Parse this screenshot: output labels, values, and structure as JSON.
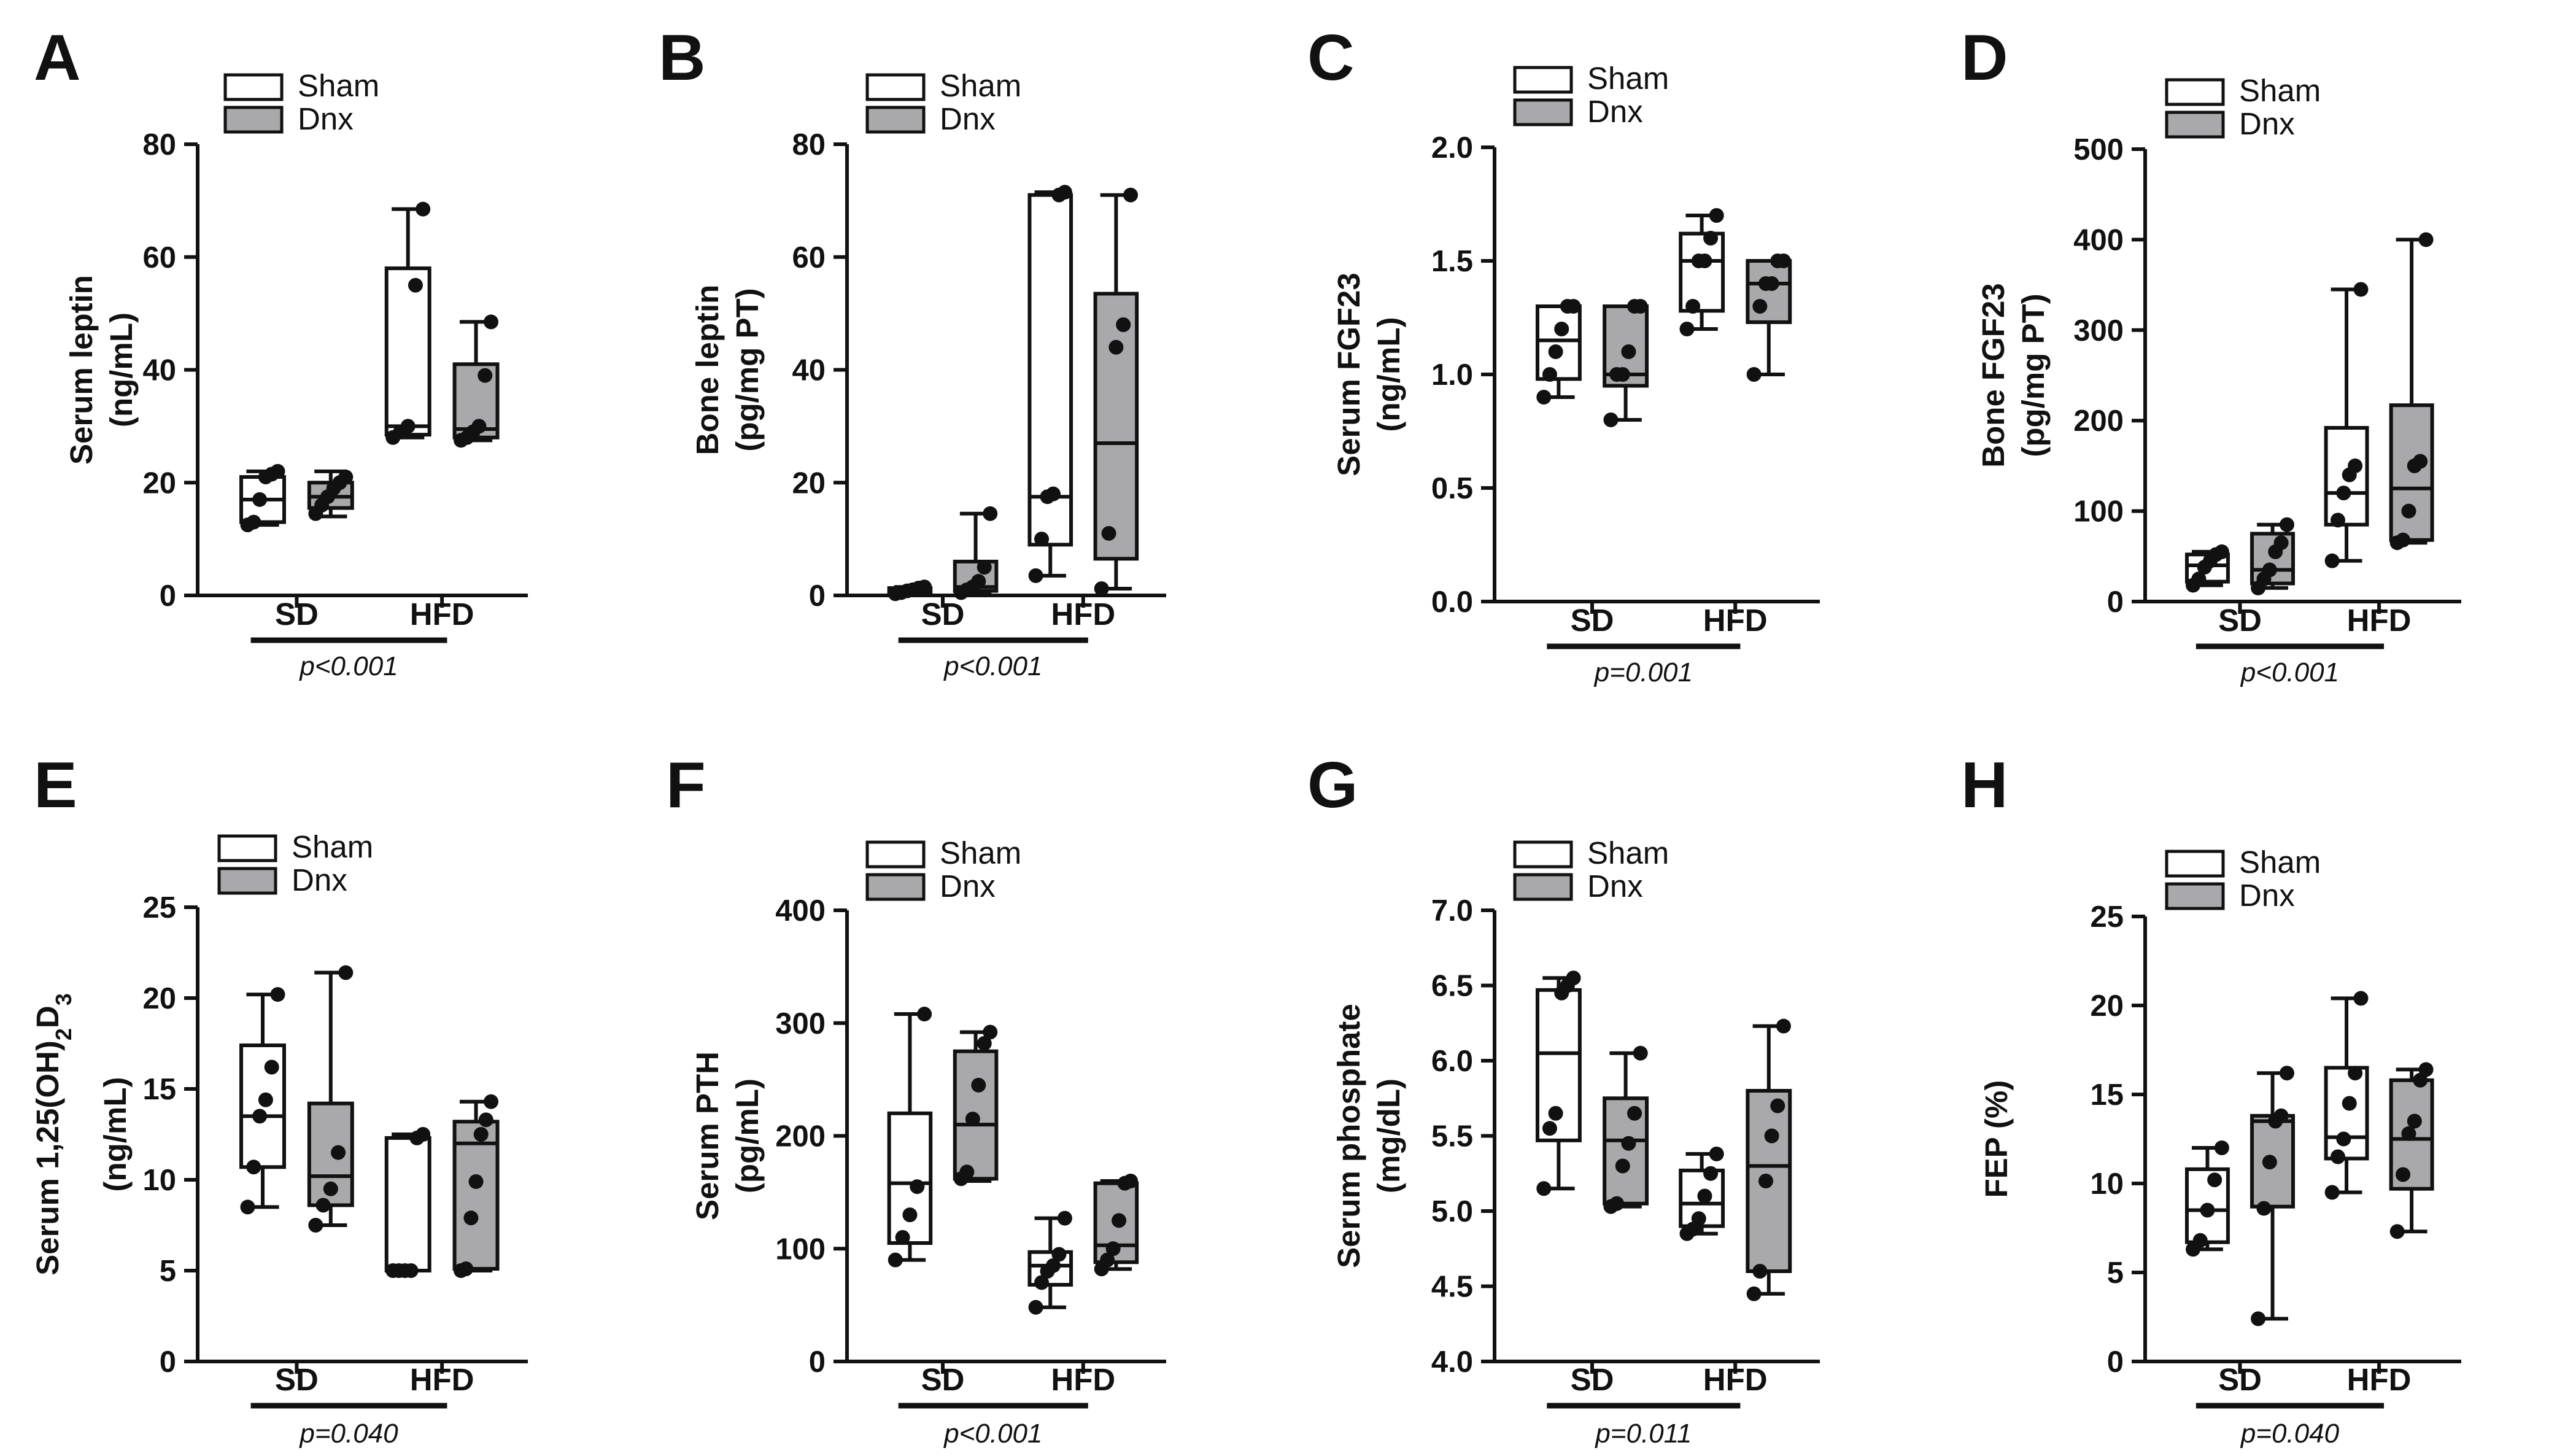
{
  "colors": {
    "sham": "#ffffff",
    "dnx": "#a9a9ab",
    "ink": "#111111"
  },
  "legend": {
    "sham": "Sham",
    "dnx": "Dnx"
  },
  "groups": [
    "SD",
    "HFD"
  ],
  "chart_data": [
    {
      "type": "box",
      "letter": "A",
      "ylabel": [
        "Serum leptin",
        "(ng/mL)"
      ],
      "ylim": [
        0,
        80
      ],
      "yticks": [
        0,
        20,
        40,
        60,
        80
      ],
      "tick_labels": [
        "0",
        "20",
        "40",
        "60",
        "80"
      ],
      "pvalue": "p<0.001",
      "series": [
        {
          "name": "Sham",
          "categories": [
            "SD",
            "HFD"
          ],
          "boxes": [
            {
              "min": 12.5,
              "q1": 13,
              "median": 17,
              "q3": 21,
              "max": 22,
              "points": [
                12.5,
                13,
                17,
                21,
                21.5,
                22
              ]
            },
            {
              "min": 28,
              "q1": 28.5,
              "median": 30,
              "q3": 58,
              "max": 68.5,
              "points": [
                28,
                29,
                30,
                55,
                68.5
              ]
            }
          ]
        },
        {
          "name": "Dnx",
          "categories": [
            "SD",
            "HFD"
          ],
          "boxes": [
            {
              "min": 14,
              "q1": 15.5,
              "median": 17.5,
              "q3": 20,
              "max": 22,
              "points": [
                14.5,
                16,
                17.5,
                19,
                20,
                21
              ]
            },
            {
              "min": 27.5,
              "q1": 28,
              "median": 29.5,
              "q3": 41,
              "max": 48.5,
              "points": [
                27.5,
                28,
                29,
                30,
                39,
                48.5
              ]
            }
          ]
        }
      ]
    },
    {
      "type": "box",
      "letter": "B",
      "ylabel": [
        "Bone leptin",
        "(pg/mg PT)"
      ],
      "ylim": [
        0,
        80
      ],
      "yticks": [
        0,
        20,
        40,
        60,
        80
      ],
      "tick_labels": [
        "0",
        "20",
        "40",
        "60",
        "80"
      ],
      "pvalue": "p<0.001",
      "series": [
        {
          "name": "Sham",
          "categories": [
            "SD",
            "HFD"
          ],
          "boxes": [
            {
              "min": 0.3,
              "q1": 0.4,
              "median": 0.8,
              "q3": 1.3,
              "max": 1.5,
              "points": [
                0.3,
                0.5,
                0.8,
                1.0,
                1.3,
                1.5
              ]
            },
            {
              "min": 3.5,
              "q1": 9,
              "median": 17.5,
              "q3": 71,
              "max": 71.5,
              "points": [
                3.5,
                10,
                17.5,
                18,
                71,
                71.5
              ]
            }
          ]
        },
        {
          "name": "Dnx",
          "categories": [
            "SD",
            "HFD"
          ],
          "boxes": [
            {
              "min": 0.5,
              "q1": 0.8,
              "median": 1.5,
              "q3": 6,
              "max": 14.5,
              "points": [
                0.5,
                1.0,
                1.5,
                2.5,
                5,
                14.5
              ]
            },
            {
              "min": 1.2,
              "q1": 6.5,
              "median": 27,
              "q3": 53.5,
              "max": 71,
              "points": [
                1.2,
                11,
                44,
                48,
                71
              ]
            }
          ]
        }
      ]
    },
    {
      "type": "box",
      "letter": "C",
      "ylabel": [
        "Serum FGF23",
        "(ng/mL)"
      ],
      "ylim": [
        0,
        2.0
      ],
      "yticks": [
        0,
        0.5,
        1.0,
        1.5,
        2.0
      ],
      "tick_labels": [
        "0.0",
        "0.5",
        "1.0",
        "1.5",
        "2.0"
      ],
      "pvalue": "p=0.001",
      "series": [
        {
          "name": "Sham",
          "categories": [
            "SD",
            "HFD"
          ],
          "boxes": [
            {
              "min": 0.9,
              "q1": 0.98,
              "median": 1.15,
              "q3": 1.3,
              "max": 1.3,
              "points": [
                0.9,
                1.0,
                1.1,
                1.2,
                1.3,
                1.3
              ]
            },
            {
              "min": 1.2,
              "q1": 1.28,
              "median": 1.5,
              "q3": 1.62,
              "max": 1.7,
              "points": [
                1.2,
                1.3,
                1.5,
                1.5,
                1.6,
                1.7
              ]
            }
          ]
        },
        {
          "name": "Dnx",
          "categories": [
            "SD",
            "HFD"
          ],
          "boxes": [
            {
              "min": 0.8,
              "q1": 0.95,
              "median": 1.0,
              "q3": 1.3,
              "max": 1.3,
              "points": [
                0.8,
                1.0,
                1.0,
                1.1,
                1.3,
                1.3
              ]
            },
            {
              "min": 1.0,
              "q1": 1.23,
              "median": 1.4,
              "q3": 1.5,
              "max": 1.5,
              "points": [
                1.0,
                1.3,
                1.4,
                1.4,
                1.5,
                1.5
              ]
            }
          ]
        }
      ]
    },
    {
      "type": "box",
      "letter": "D",
      "ylabel": [
        "Bone FGF23",
        "(pg/mg PT)"
      ],
      "ylim": [
        0,
        500
      ],
      "yticks": [
        0,
        100,
        200,
        300,
        400,
        500
      ],
      "tick_labels": [
        "0",
        "100",
        "200",
        "300",
        "400",
        "500"
      ],
      "pvalue": "p<0.001",
      "series": [
        {
          "name": "Sham",
          "categories": [
            "SD",
            "HFD"
          ],
          "boxes": [
            {
              "min": 18,
              "q1": 22,
              "median": 40,
              "q3": 52,
              "max": 55,
              "points": [
                18,
                25,
                38,
                45,
                52,
                55
              ]
            },
            {
              "min": 45,
              "q1": 85,
              "median": 120,
              "q3": 192,
              "max": 345,
              "points": [
                45,
                90,
                120,
                140,
                150,
                345
              ]
            }
          ]
        },
        {
          "name": "Dnx",
          "categories": [
            "SD",
            "HFD"
          ],
          "boxes": [
            {
              "min": 15,
              "q1": 20,
              "median": 35,
              "q3": 75,
              "max": 85,
              "points": [
                15,
                25,
                35,
                55,
                65,
                85
              ]
            },
            {
              "min": 65,
              "q1": 68,
              "median": 125,
              "q3": 217,
              "max": 400,
              "points": [
                65,
                68,
                100,
                150,
                155,
                400
              ]
            }
          ]
        }
      ]
    },
    {
      "type": "box",
      "letter": "E",
      "ylabel": [
        "Serum 1,25(OH)",
        "2",
        "D",
        "3",
        "(ng/mL)"
      ],
      "ylim": [
        0,
        25
      ],
      "yticks": [
        0,
        5,
        10,
        15,
        20,
        25
      ],
      "tick_labels": [
        "0",
        "5",
        "10",
        "15",
        "20",
        "25"
      ],
      "pvalue": "p=0.040",
      "series": [
        {
          "name": "Sham",
          "categories": [
            "SD",
            "HFD"
          ],
          "boxes": [
            {
              "min": 8.5,
              "q1": 10.7,
              "median": 13.5,
              "q3": 17.4,
              "max": 20.2,
              "points": [
                8.5,
                10.7,
                13.5,
                14.4,
                16.2,
                20.2
              ]
            },
            {
              "min": 5,
              "q1": 5,
              "median": 5,
              "q3": 12.3,
              "max": 12.5,
              "points": [
                5,
                5,
                5,
                5,
                12.3,
                12.5
              ]
            }
          ]
        },
        {
          "name": "Dnx",
          "categories": [
            "SD",
            "HFD"
          ],
          "boxes": [
            {
              "min": 7.5,
              "q1": 8.6,
              "median": 10.2,
              "q3": 14.2,
              "max": 21.4,
              "points": [
                7.5,
                8.6,
                9.5,
                11.5,
                21.4
              ]
            },
            {
              "min": 5,
              "q1": 5.1,
              "median": 12.0,
              "q3": 13.2,
              "max": 14.3,
              "points": [
                5,
                5.1,
                7.9,
                9.9,
                12.5,
                13.3,
                14.3
              ]
            }
          ]
        }
      ]
    },
    {
      "type": "box",
      "letter": "F",
      "ylabel": [
        "Serum PTH",
        "(pg/mL)"
      ],
      "ylim": [
        0,
        400
      ],
      "yticks": [
        0,
        100,
        200,
        300,
        400
      ],
      "tick_labels": [
        "0",
        "100",
        "200",
        "300",
        "400"
      ],
      "pvalue": "p<0.001",
      "series": [
        {
          "name": "Sham",
          "categories": [
            "SD",
            "HFD"
          ],
          "boxes": [
            {
              "min": 90,
              "q1": 105,
              "median": 158,
              "q3": 220,
              "max": 308,
              "points": [
                90,
                110,
                130,
                155,
                308
              ]
            },
            {
              "min": 48,
              "q1": 68,
              "median": 85,
              "q3": 97,
              "max": 127,
              "points": [
                48,
                70,
                80,
                85,
                95,
                127
              ]
            }
          ]
        },
        {
          "name": "Dnx",
          "categories": [
            "SD",
            "HFD"
          ],
          "boxes": [
            {
              "min": 160,
              "q1": 162,
              "median": 210,
              "q3": 275,
              "max": 292,
              "points": [
                162,
                168,
                215,
                245,
                282,
                292
              ]
            },
            {
              "min": 82,
              "q1": 88,
              "median": 103,
              "q3": 158,
              "max": 160,
              "points": [
                82,
                90,
                100,
                125,
                158,
                160
              ]
            }
          ]
        }
      ]
    },
    {
      "type": "box",
      "letter": "G",
      "ylabel": [
        "Serum phosphate",
        "(mg/dL)"
      ],
      "ylim": [
        4.0,
        7.0
      ],
      "yticks": [
        4.0,
        4.5,
        5.0,
        5.5,
        6.0,
        6.5,
        7.0
      ],
      "tick_labels": [
        "4.0",
        "4.5",
        "5.0",
        "5.5",
        "6.0",
        "6.5",
        "7.0"
      ],
      "pvalue": "p=0.011",
      "series": [
        {
          "name": "Sham",
          "categories": [
            "SD",
            "HFD"
          ],
          "boxes": [
            {
              "min": 5.15,
              "q1": 5.47,
              "median": 6.05,
              "q3": 6.47,
              "max": 6.55,
              "points": [
                5.15,
                5.55,
                5.65,
                6.45,
                6.5,
                6.55
              ]
            },
            {
              "min": 4.85,
              "q1": 4.9,
              "median": 5.05,
              "q3": 5.27,
              "max": 5.38,
              "points": [
                4.85,
                4.88,
                4.95,
                5.1,
                5.25,
                5.38
              ]
            }
          ]
        },
        {
          "name": "Dnx",
          "categories": [
            "SD",
            "HFD"
          ],
          "boxes": [
            {
              "min": 5.03,
              "q1": 5.05,
              "median": 5.47,
              "q3": 5.75,
              "max": 6.05,
              "points": [
                5.03,
                5.05,
                5.3,
                5.45,
                5.65,
                6.05
              ]
            },
            {
              "min": 4.45,
              "q1": 4.6,
              "median": 5.3,
              "q3": 5.8,
              "max": 6.23,
              "points": [
                4.45,
                4.6,
                5.2,
                5.5,
                5.7,
                6.23
              ]
            }
          ]
        }
      ]
    },
    {
      "type": "box",
      "letter": "H",
      "ylabel": [
        "FEP (%)"
      ],
      "ylim": [
        0,
        25
      ],
      "yticks": [
        0,
        5,
        10,
        15,
        20,
        25
      ],
      "tick_labels": [
        "0",
        "5",
        "10",
        "15",
        "20",
        "25"
      ],
      "pvalue": "p=0.040",
      "series": [
        {
          "name": "Sham",
          "categories": [
            "SD",
            "HFD"
          ],
          "boxes": [
            {
              "min": 6.3,
              "q1": 6.7,
              "median": 8.5,
              "q3": 10.8,
              "max": 12.0,
              "points": [
                6.3,
                6.8,
                8.5,
                10.2,
                12.0
              ]
            },
            {
              "min": 9.5,
              "q1": 11.4,
              "median": 12.6,
              "q3": 16.5,
              "max": 20.4,
              "points": [
                9.5,
                11.5,
                12.5,
                14.5,
                16.2,
                20.4
              ]
            }
          ]
        },
        {
          "name": "Dnx",
          "categories": [
            "SD",
            "HFD"
          ],
          "boxes": [
            {
              "min": 2.4,
              "q1": 8.7,
              "median": 13.5,
              "q3": 13.8,
              "max": 16.2,
              "points": [
                2.4,
                8.6,
                11.2,
                13.5,
                13.8,
                16.2
              ]
            },
            {
              "min": 7.3,
              "q1": 9.7,
              "median": 12.5,
              "q3": 15.8,
              "max": 16.4,
              "points": [
                7.3,
                10.5,
                12.8,
                13.5,
                15.8,
                16.4
              ]
            }
          ]
        }
      ]
    }
  ]
}
